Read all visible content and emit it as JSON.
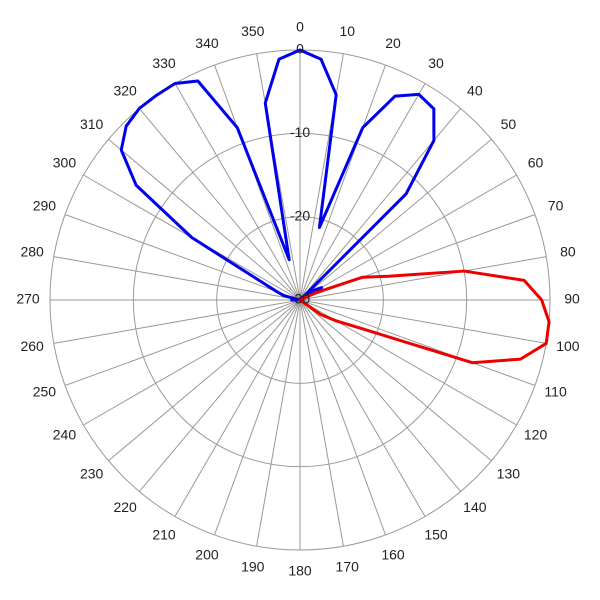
{
  "chart_data": {
    "type": "polar",
    "theta": [
      0,
      5,
      10,
      15,
      20,
      25,
      30,
      35,
      40,
      45,
      50,
      55,
      60,
      65,
      70,
      75,
      80,
      85,
      90,
      95,
      100,
      105,
      110,
      115,
      120,
      125,
      130,
      135,
      140,
      145,
      150,
      155,
      160,
      165,
      170,
      175,
      180,
      185,
      190,
      195,
      200,
      205,
      210,
      215,
      220,
      225,
      230,
      235,
      240,
      245,
      250,
      255,
      260,
      265,
      270,
      275,
      280,
      285,
      290,
      295,
      300,
      305,
      310,
      315,
      320,
      325,
      330,
      335,
      340,
      345,
      350,
      355
    ],
    "series": [
      {
        "color": "#0000ee",
        "values": [
          0,
          -1,
          -5,
          -21,
          -8,
          -3,
          -1.5,
          -2,
          -5,
          -12,
          -30,
          -28,
          -27,
          -29,
          -30,
          -30,
          -30,
          -30,
          -30,
          -30,
          -30,
          -30,
          -30,
          -30,
          -30,
          -30,
          -30,
          -30,
          -30,
          -30,
          -30,
          -30,
          -30,
          -30,
          -30,
          -30,
          -30,
          -30,
          -30,
          -30,
          -30,
          -30,
          -30,
          -30,
          -30,
          -30,
          -30,
          -30,
          -30,
          -30,
          -30,
          -30,
          -30,
          -30,
          -29,
          -30,
          -30,
          -28,
          -27,
          -25,
          -15,
          -6,
          -2,
          -0.5,
          0,
          0,
          0,
          -1,
          -8,
          -25,
          -6,
          -1
        ]
      },
      {
        "color": "#ee0000",
        "values": [
          -30,
          -30,
          -30,
          -30,
          -30,
          -30,
          -30,
          -30,
          -30,
          -30,
          -30,
          -30,
          -30,
          -28,
          -22,
          -19,
          -10,
          -3,
          -1,
          0,
          0,
          -2.6,
          -8,
          -22,
          -25,
          -27,
          -30,
          -30,
          -30,
          -30,
          -30,
          -30,
          -30,
          -30,
          -30,
          -30,
          -30,
          -30,
          -30,
          -30,
          -30,
          -30,
          -30,
          -30,
          -30,
          -30,
          -30,
          -30,
          -30,
          -30,
          -30,
          -30,
          -30,
          -30,
          -30,
          -30,
          -30,
          -30,
          -30,
          -30,
          -30,
          -30,
          -30,
          -30,
          -30,
          -30,
          -30,
          -30,
          -30,
          -30,
          -30,
          -30
        ]
      }
    ],
    "rlim": [
      -30,
      0
    ],
    "rticks": [
      0,
      -10,
      -20,
      -30
    ],
    "thetaticks": [
      0,
      10,
      20,
      30,
      40,
      50,
      60,
      70,
      80,
      90,
      100,
      110,
      120,
      130,
      140,
      150,
      160,
      170,
      180,
      190,
      200,
      210,
      220,
      230,
      240,
      250,
      260,
      270,
      280,
      290,
      300,
      310,
      320,
      330,
      340,
      350
    ],
    "grid": true
  }
}
